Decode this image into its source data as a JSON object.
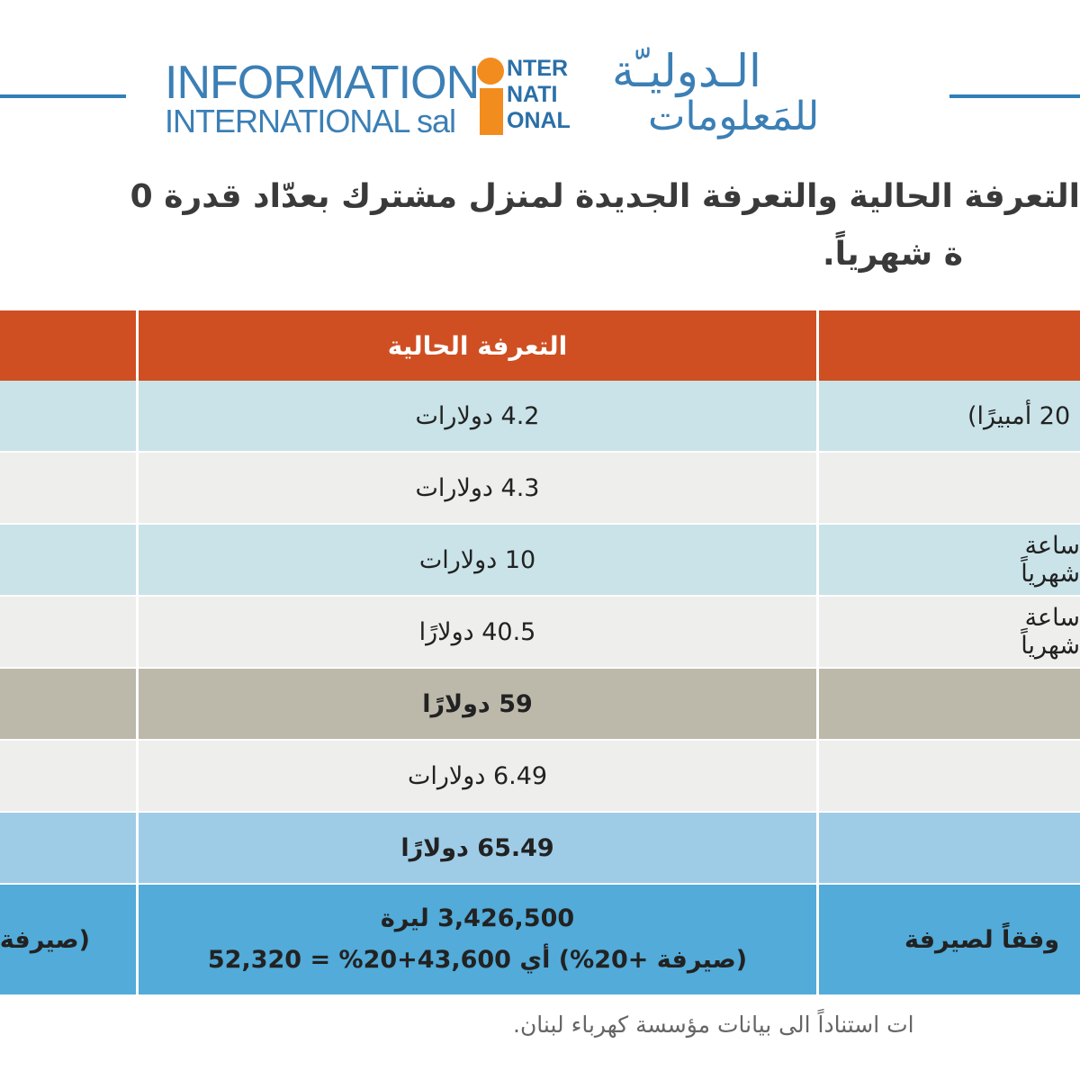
{
  "logo": {
    "en_line1": "INFORMATION",
    "en_line2": "INTERNATIONAL sal",
    "mark": [
      "NTER",
      "NATI",
      "ONAL"
    ],
    "ar_line1": "الـدوليـّة",
    "ar_line2": "للمَعلومات"
  },
  "title": {
    "line1": "التعرفة الحالية والتعرفة الجديدة لمنزل مشترك بعدّاد قدرة 0",
    "line2": "ة شهرياً."
  },
  "table": {
    "header": {
      "current": "التعرفة الحالية"
    },
    "rows": [
      {
        "current": "4.2 دولارات",
        "right": "20 أمبيرًا)"
      },
      {
        "current": "4.3 دولارات"
      },
      {
        "current": "10 دولارات",
        "right": "ساعة شهرياً"
      },
      {
        "current": "40.5 دولارًا",
        "right": "ساعة شهرياً"
      },
      {
        "current": "59 دولارًا"
      },
      {
        "current": "6.49 دولارات"
      },
      {
        "current": "65.49 دولارًا"
      },
      {
        "current": "3,426,500 ليرة",
        "current_note": "(صيرفة +20%) أي 43,600+20% = 52,320",
        "right": "وفقاً لصيرفة",
        "left": "(صيرفة"
      }
    ]
  },
  "footer": "ات استناداً الى بيانات مؤسسة كهرباء لبنان."
}
